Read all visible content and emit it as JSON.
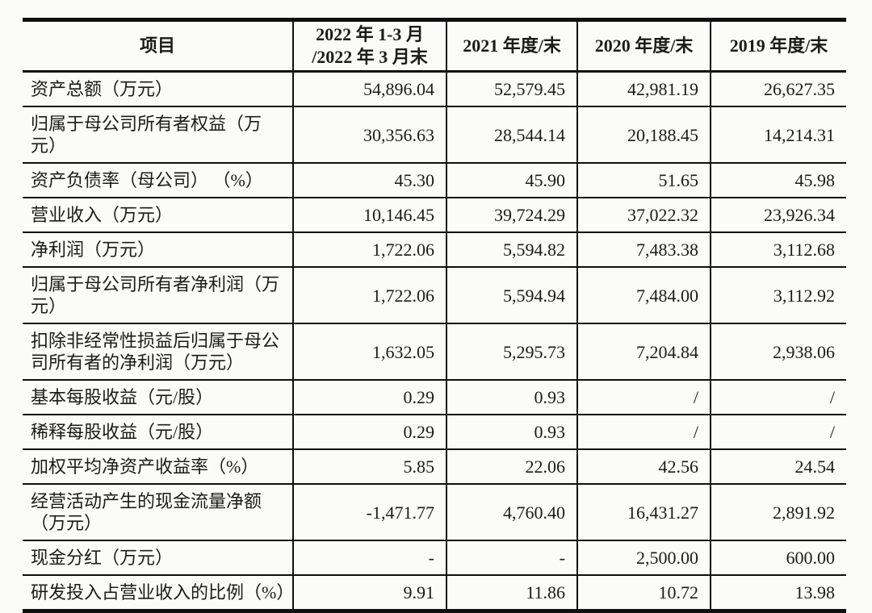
{
  "colors": {
    "background": "#fbfbf9",
    "line": "#101010",
    "text": "#1b1b1b"
  },
  "table": {
    "headers": [
      "项目",
      "2022 年 1-3 月\n/2022 年 3 月末",
      "2021 年度/末",
      "2020 年度/末",
      "2019 年度/末"
    ],
    "rows": [
      {
        "label": "资产总额（万元）",
        "values": [
          "54,896.04",
          "52,579.45",
          "42,981.19",
          "26,627.35"
        ]
      },
      {
        "label": "归属于母公司所有者权益（万元）",
        "values": [
          "30,356.63",
          "28,544.14",
          "20,188.45",
          "14,214.31"
        ]
      },
      {
        "label": "资产负债率（母公司） （%）",
        "values": [
          "45.30",
          "45.90",
          "51.65",
          "45.98"
        ]
      },
      {
        "label": "营业收入（万元）",
        "values": [
          "10,146.45",
          "39,724.29",
          "37,022.32",
          "23,926.34"
        ]
      },
      {
        "label": "净利润（万元）",
        "values": [
          "1,722.06",
          "5,594.82",
          "7,483.38",
          "3,112.68"
        ]
      },
      {
        "label": "归属于母公司所有者净利润（万元）",
        "values": [
          "1,722.06",
          "5,594.94",
          "7,484.00",
          "3,112.92"
        ]
      },
      {
        "label": "扣除非经常性损益后归属于母公司所有者的净利润（万元）",
        "values": [
          "1,632.05",
          "5,295.73",
          "7,204.84",
          "2,938.06"
        ]
      },
      {
        "label": "基本每股收益（元/股）",
        "values": [
          "0.29",
          "0.93",
          "/",
          "/"
        ]
      },
      {
        "label": "稀释每股收益（元/股）",
        "values": [
          "0.29",
          "0.93",
          "/",
          "/"
        ]
      },
      {
        "label": "加权平均净资产收益率（%）",
        "values": [
          "5.85",
          "22.06",
          "42.56",
          "24.54"
        ]
      },
      {
        "label": "经营活动产生的现金流量净额（万元）",
        "values": [
          "-1,471.77",
          "4,760.40",
          "16,431.27",
          "2,891.92"
        ]
      },
      {
        "label": "现金分红（万元）",
        "values": [
          "-",
          "-",
          "2,500.00",
          "600.00"
        ]
      },
      {
        "label": "研发投入占营业收入的比例（%）",
        "values": [
          "9.91",
          "11.86",
          "10.72",
          "13.98"
        ]
      }
    ]
  }
}
